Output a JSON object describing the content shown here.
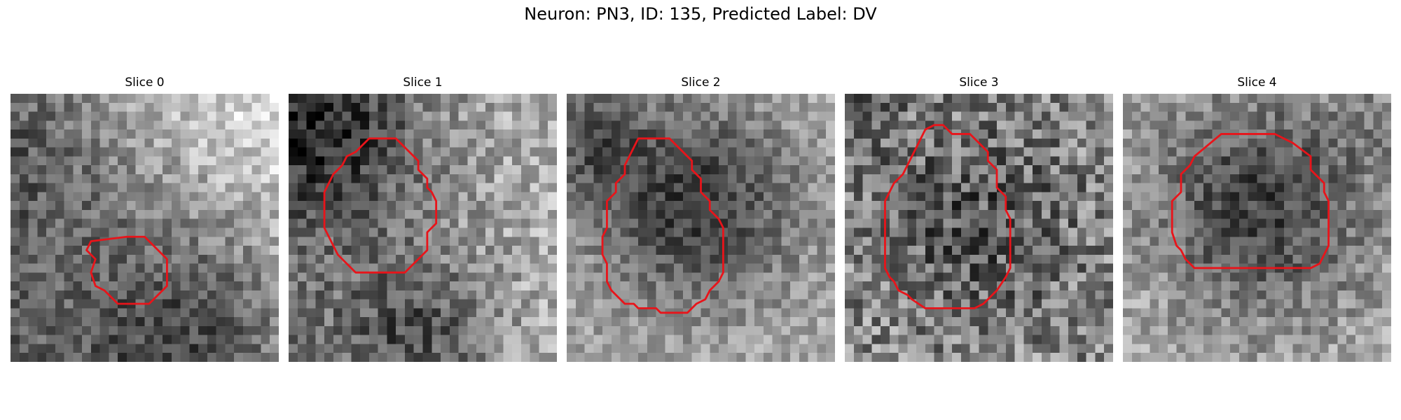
{
  "figure": {
    "title": "Neuron: PN3, ID: 135, Predicted Label: DV"
  },
  "panels": [
    {
      "title": "Slice 0",
      "contour": [
        [
          13,
          16
        ],
        [
          15,
          16
        ],
        [
          17.5,
          18.5
        ],
        [
          17.5,
          21.5
        ],
        [
          15.5,
          23.5
        ],
        [
          12,
          23.5
        ],
        [
          10.5,
          22
        ],
        [
          9.5,
          21.5
        ],
        [
          9,
          20
        ],
        [
          9.5,
          18.5
        ],
        [
          8.5,
          17.5
        ],
        [
          9,
          16.5
        ]
      ],
      "pattern": {
        "bg": 165,
        "amp": 55,
        "gx": 0.06,
        "gy": -0.05,
        "blob": [
          20,
          25,
          9,
          -80
        ],
        "blob2": [
          0,
          5,
          10,
          -60
        ],
        "noise": 45,
        "seed": 11
      }
    },
    {
      "title": "Slice 1",
      "contour": [
        [
          9,
          5
        ],
        [
          12,
          5
        ],
        [
          14.5,
          7.5
        ],
        [
          14.5,
          8.5
        ],
        [
          15.5,
          9.5
        ],
        [
          15.5,
          10.5
        ],
        [
          16,
          11
        ],
        [
          16.5,
          12
        ],
        [
          16.5,
          14.5
        ],
        [
          15.5,
          15.5
        ],
        [
          15.5,
          17.5
        ],
        [
          14.5,
          18.5
        ],
        [
          13,
          20
        ],
        [
          7.5,
          20
        ],
        [
          6,
          18.5
        ],
        [
          5.5,
          18
        ],
        [
          5,
          17
        ],
        [
          4.5,
          16
        ],
        [
          4,
          15
        ],
        [
          4,
          11
        ],
        [
          4.5,
          10
        ],
        [
          5,
          9
        ],
        [
          6,
          8
        ],
        [
          6.5,
          7
        ],
        [
          7.5,
          6.5
        ],
        [
          8,
          6
        ]
      ],
      "pattern": {
        "bg": 150,
        "amp": 30,
        "gx": 0.05,
        "gy": 0.0,
        "blob": [
          4,
          4,
          7,
          -90
        ],
        "blob2": [
          14,
          26,
          6,
          -70
        ],
        "noise": 50,
        "seed": 23
      }
    },
    {
      "title": "Slice 2",
      "contour": [
        [
          8,
          5
        ],
        [
          11.5,
          5
        ],
        [
          13,
          6.5
        ],
        [
          14,
          7.5
        ],
        [
          14,
          8.5
        ],
        [
          15,
          9.5
        ],
        [
          15,
          11
        ],
        [
          16,
          12
        ],
        [
          16,
          13
        ],
        [
          17,
          14
        ],
        [
          17.5,
          15
        ],
        [
          17.5,
          20
        ],
        [
          17,
          21
        ],
        [
          16,
          22
        ],
        [
          15.5,
          23
        ],
        [
          14.5,
          23.5
        ],
        [
          13.5,
          24.5
        ],
        [
          10.5,
          24.5
        ],
        [
          10,
          24
        ],
        [
          8,
          24
        ],
        [
          7.5,
          23.5
        ],
        [
          6.5,
          23.5
        ],
        [
          5,
          22
        ],
        [
          4.5,
          21
        ],
        [
          4.5,
          19
        ],
        [
          4,
          18
        ],
        [
          4,
          16
        ],
        [
          4.5,
          15
        ],
        [
          4.5,
          12
        ],
        [
          5.5,
          11
        ],
        [
          5.5,
          10
        ],
        [
          6.5,
          9
        ],
        [
          6.5,
          8
        ]
      ],
      "pattern": {
        "bg": 170,
        "amp": 25,
        "gx": 0.0,
        "gy": 0.0,
        "blob": [
          14,
          12,
          8,
          -110
        ],
        "blob2": [
          2,
          5,
          5,
          -70
        ],
        "noise": 40,
        "seed": 37
      }
    },
    {
      "title": "Slice 3",
      "contour": [
        [
          9,
          4
        ],
        [
          10,
          3.5
        ],
        [
          11,
          3.5
        ],
        [
          12,
          4.5
        ],
        [
          14,
          4.5
        ],
        [
          16,
          6.5
        ],
        [
          16,
          7.5
        ],
        [
          17,
          8.5
        ],
        [
          17,
          10.5
        ],
        [
          18,
          11.5
        ],
        [
          18,
          13
        ],
        [
          18.5,
          14
        ],
        [
          18.5,
          19.5
        ],
        [
          18,
          20.5
        ],
        [
          17,
          22
        ],
        [
          15.5,
          23.5
        ],
        [
          14.5,
          24
        ],
        [
          9,
          24
        ],
        [
          7.5,
          23
        ],
        [
          7,
          22.5
        ],
        [
          6,
          22
        ],
        [
          5.5,
          21
        ],
        [
          5,
          20.5
        ],
        [
          4.5,
          19.5
        ],
        [
          4.5,
          12
        ],
        [
          5,
          11
        ],
        [
          5.5,
          10
        ],
        [
          6.5,
          9
        ],
        [
          7,
          8
        ],
        [
          7.5,
          7
        ]
      ],
      "pattern": {
        "bg": 145,
        "amp": 20,
        "gx": 0.0,
        "gy": 0.0,
        "blob": [
          14,
          14,
          9,
          -60
        ],
        "blob2": [
          0,
          0,
          4,
          -40
        ],
        "noise": 70,
        "seed": 53
      }
    },
    {
      "title": "Slice 4",
      "contour": [
        [
          11,
          4.5
        ],
        [
          17,
          4.5
        ],
        [
          19,
          5.5
        ],
        [
          21,
          7
        ],
        [
          21,
          8.5
        ],
        [
          22.5,
          10
        ],
        [
          22.5,
          11
        ],
        [
          23,
          12
        ],
        [
          23,
          17
        ],
        [
          22.5,
          18
        ],
        [
          22,
          19
        ],
        [
          21,
          19.5
        ],
        [
          8,
          19.5
        ],
        [
          7,
          18.5
        ],
        [
          6.5,
          17.5
        ],
        [
          6,
          17
        ],
        [
          5.5,
          15.5
        ],
        [
          5.5,
          12
        ],
        [
          6.5,
          11
        ],
        [
          6.5,
          9
        ],
        [
          7.5,
          8
        ],
        [
          8,
          7
        ]
      ],
      "pattern": {
        "bg": 175,
        "amp": 20,
        "gx": 0.0,
        "gy": 0.0,
        "blob": [
          15,
          12,
          9,
          -110
        ],
        "blob2": [
          28,
          2,
          4,
          -30
        ],
        "noise": 45,
        "seed": 71
      }
    }
  ]
}
